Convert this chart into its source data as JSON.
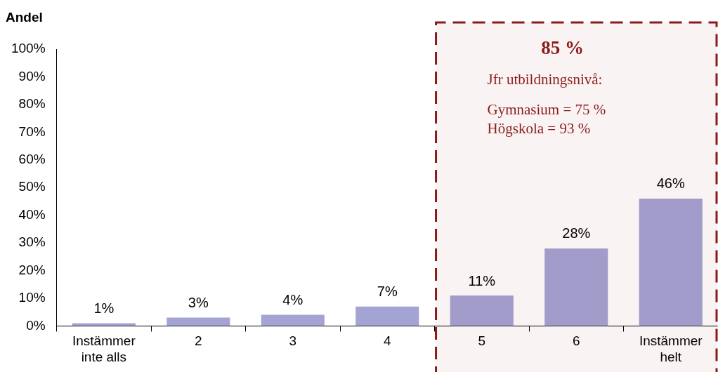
{
  "chart_data": {
    "type": "bar",
    "ylabel": "Andel",
    "categories": [
      "Instämmer inte alls",
      "2",
      "3",
      "4",
      "5",
      "6",
      "Instämmer helt"
    ],
    "values": [
      1,
      3,
      4,
      7,
      11,
      28,
      46
    ],
    "value_labels": [
      "1%",
      "3%",
      "4%",
      "7%",
      "11%",
      "28%",
      "46%"
    ],
    "color": "#a4a4d4",
    "ylim": [
      0,
      100
    ],
    "yticks": [
      {
        "value": 0,
        "label": "0%"
      },
      {
        "value": 10,
        "label": "10%"
      },
      {
        "value": 20,
        "label": "20%"
      },
      {
        "value": 30,
        "label": "30%"
      },
      {
        "value": 40,
        "label": "40%"
      },
      {
        "value": 50,
        "label": "50%"
      },
      {
        "value": 60,
        "label": "60%"
      },
      {
        "value": 70,
        "label": "70%"
      },
      {
        "value": 80,
        "label": "80%"
      },
      {
        "value": 90,
        "label": "90%"
      },
      {
        "value": 100,
        "label": "100%"
      }
    ],
    "bands": [
      {
        "axis": "x",
        "from": "5",
        "to": "Instämmer helt",
        "label": "85 %",
        "color": "#8b1a1a"
      }
    ],
    "annotations": [
      "Jfr utbildningsnivå:",
      "Gymnasium = 75 %",
      "Högskola = 93 %"
    ]
  }
}
